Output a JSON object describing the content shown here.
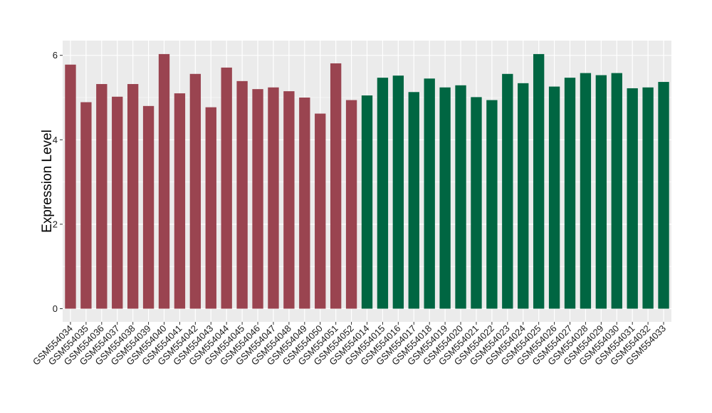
{
  "chart_data": {
    "type": "bar",
    "title": "",
    "xlabel": "",
    "ylabel": "Expression Level",
    "ylim": [
      0,
      6.3
    ],
    "yticks": [
      0,
      2,
      4,
      6
    ],
    "grid": true,
    "legend": "none",
    "categories": [
      "GSM554034",
      "GSM554035",
      "GSM554036",
      "GSM554037",
      "GSM554038",
      "GSM554039",
      "GSM554040",
      "GSM554041",
      "GSM554042",
      "GSM554043",
      "GSM554044",
      "GSM554045",
      "GSM554046",
      "GSM554047",
      "GSM554048",
      "GSM554049",
      "GSM554050",
      "GSM554051",
      "GSM554052",
      "GSM554014",
      "GSM554015",
      "GSM554016",
      "GSM554017",
      "GSM554018",
      "GSM554019",
      "GSM554020",
      "GSM554021",
      "GSM554022",
      "GSM554023",
      "GSM554024",
      "GSM554025",
      "GSM554026",
      "GSM554027",
      "GSM554028",
      "GSM554029",
      "GSM554030",
      "GSM554031",
      "GSM554032",
      "GSM554033"
    ],
    "values": [
      5.78,
      4.89,
      5.32,
      5.02,
      5.32,
      4.8,
      6.03,
      5.1,
      5.56,
      4.77,
      5.71,
      5.39,
      5.2,
      5.24,
      5.15,
      5.0,
      4.62,
      5.81,
      4.94,
      5.05,
      5.47,
      5.52,
      5.13,
      5.45,
      5.24,
      5.29,
      5.01,
      4.94,
      5.56,
      5.34,
      6.03,
      5.26,
      5.47,
      5.58,
      5.53,
      5.58,
      5.22,
      5.24,
      5.37
    ],
    "bar_colors": [
      "#9a4450",
      "#9a4450",
      "#9a4450",
      "#9a4450",
      "#9a4450",
      "#9a4450",
      "#9a4450",
      "#9a4450",
      "#9a4450",
      "#9a4450",
      "#9a4450",
      "#9a4450",
      "#9a4450",
      "#9a4450",
      "#9a4450",
      "#9a4450",
      "#9a4450",
      "#9a4450",
      "#9a4450",
      "#006642",
      "#006642",
      "#006642",
      "#006642",
      "#006642",
      "#006642",
      "#006642",
      "#006642",
      "#006642",
      "#006642",
      "#006642",
      "#006642",
      "#006642",
      "#006642",
      "#006642",
      "#006642",
      "#006642",
      "#006642",
      "#006642",
      "#006642"
    ],
    "panel_background": "#ebebeb",
    "grid_color": "#ffffff"
  }
}
